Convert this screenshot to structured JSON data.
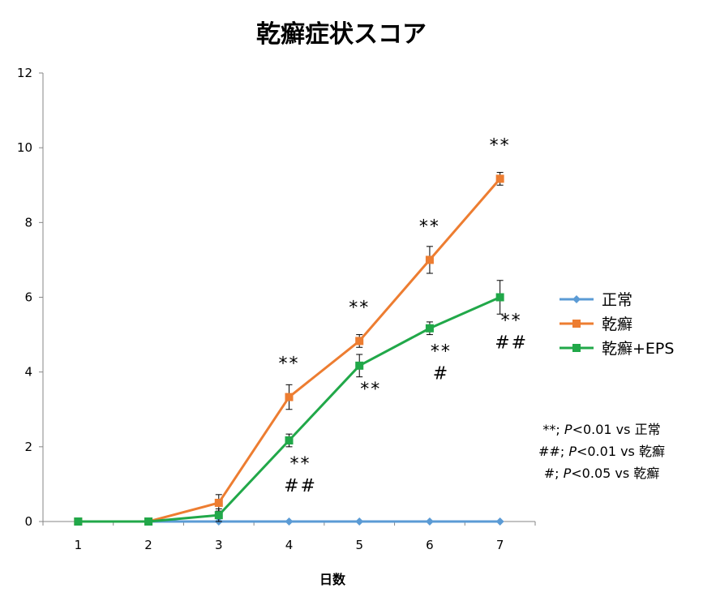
{
  "chart_data": {
    "type": "line",
    "title": "乾癬症状スコア",
    "xlabel": "日数",
    "ylabel": "",
    "x": [
      1,
      2,
      3,
      4,
      5,
      6,
      7
    ],
    "xlim": [
      0.5,
      7.5
    ],
    "ylim": [
      0,
      12
    ],
    "yticks": [
      0,
      2,
      4,
      6,
      8,
      10,
      12
    ],
    "grid": false,
    "legend_position": "right",
    "series": [
      {
        "name": "正常",
        "color": "#5B9BD5",
        "marker": "diamond",
        "values": [
          0,
          0,
          0,
          0,
          0,
          0,
          0
        ],
        "errors": [
          0,
          0,
          0,
          0,
          0,
          0,
          0
        ]
      },
      {
        "name": "乾癬",
        "color": "#ED7D31",
        "marker": "square",
        "values": [
          0,
          0,
          0.5,
          3.33,
          4.83,
          7.0,
          9.17
        ],
        "errors": [
          0,
          0,
          0.22,
          0.33,
          0.17,
          0.36,
          0.17
        ]
      },
      {
        "name": "乾癬+EPS",
        "color": "#21A849",
        "marker": "square",
        "values": [
          0,
          0,
          0.17,
          2.17,
          4.17,
          5.17,
          6.0
        ],
        "errors": [
          0,
          0,
          0.17,
          0.17,
          0.3,
          0.17,
          0.45
        ]
      }
    ],
    "annotations": [
      {
        "x": 4,
        "y": 3.33,
        "position": "above",
        "lines": [
          "**"
        ]
      },
      {
        "x": 5,
        "y": 4.83,
        "position": "above",
        "lines": [
          "**"
        ]
      },
      {
        "x": 6,
        "y": 7.0,
        "position": "above",
        "lines": [
          "**"
        ]
      },
      {
        "x": 7,
        "y": 9.17,
        "position": "above",
        "lines": [
          "**"
        ]
      },
      {
        "x": 4,
        "y": 2.17,
        "position": "below",
        "lines": [
          "**",
          "##"
        ]
      },
      {
        "x": 5,
        "y": 4.17,
        "position": "below",
        "lines": [
          "**"
        ]
      },
      {
        "x": 6,
        "y": 5.17,
        "position": "below",
        "lines": [
          "**",
          "#"
        ]
      },
      {
        "x": 7,
        "y": 6.0,
        "position": "below",
        "lines": [
          "**",
          "##"
        ]
      }
    ],
    "notes": [
      {
        "prefix": "**; ",
        "p": "P",
        "rest": "<0.01 vs 正常"
      },
      {
        "prefix": "##; ",
        "p": "P",
        "rest": "<0.01 vs 乾癬"
      },
      {
        "prefix": "#; ",
        "p": "P",
        "rest": "<0.05 vs 乾癬"
      }
    ]
  }
}
